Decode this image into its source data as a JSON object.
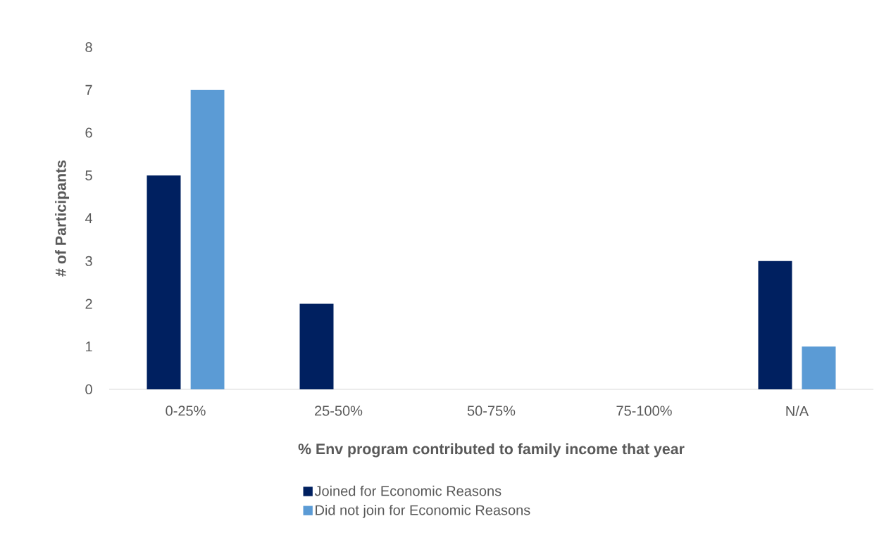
{
  "chart_data": {
    "type": "bar",
    "xlabel": "% Env program contributed to family income that year",
    "ylabel": "# of Participants",
    "categories": [
      "0-25%",
      "25-50%",
      "50-75%",
      "75-100%",
      "N/A"
    ],
    "series": [
      {
        "name": "Joined for Economic Reasons",
        "color": "#002060",
        "values": [
          5,
          2,
          0,
          0,
          3
        ]
      },
      {
        "name": "Did not join for Economic Reasons",
        "color": "#5b9bd5",
        "values": [
          7,
          0,
          0,
          0,
          1
        ]
      }
    ],
    "ylim": [
      0,
      8
    ],
    "yticks": [
      0,
      1,
      2,
      3,
      4,
      5,
      6,
      7,
      8
    ],
    "legend": "bottom"
  }
}
